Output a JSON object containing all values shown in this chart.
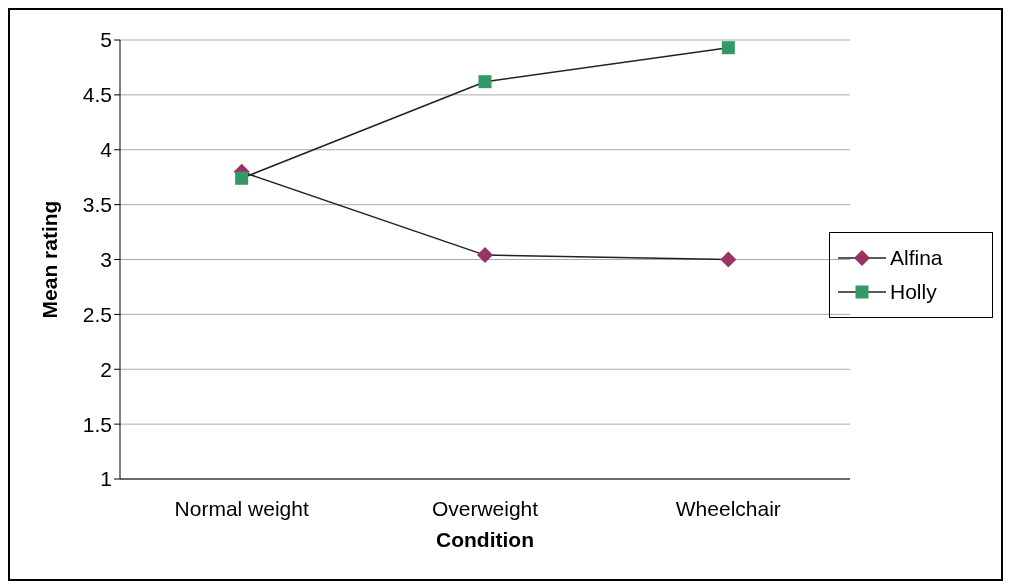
{
  "chart_data": {
    "type": "line",
    "xlabel": "Condition",
    "ylabel": "Mean rating",
    "categories": [
      "Normal weight",
      "Overweight",
      "Wheelchair"
    ],
    "series": [
      {
        "name": "Alfina",
        "color": "#993366",
        "marker": "diamond",
        "values": [
          3.8,
          3.04,
          3.0
        ]
      },
      {
        "name": "Holly",
        "color": "#339966",
        "marker": "square",
        "values": [
          3.74,
          4.62,
          4.93
        ]
      }
    ],
    "ylim": [
      1,
      5
    ],
    "yticks": [
      1,
      1.5,
      2,
      2.5,
      3,
      3.5,
      4,
      4.5,
      5
    ],
    "grid": "y",
    "legend": "right"
  }
}
